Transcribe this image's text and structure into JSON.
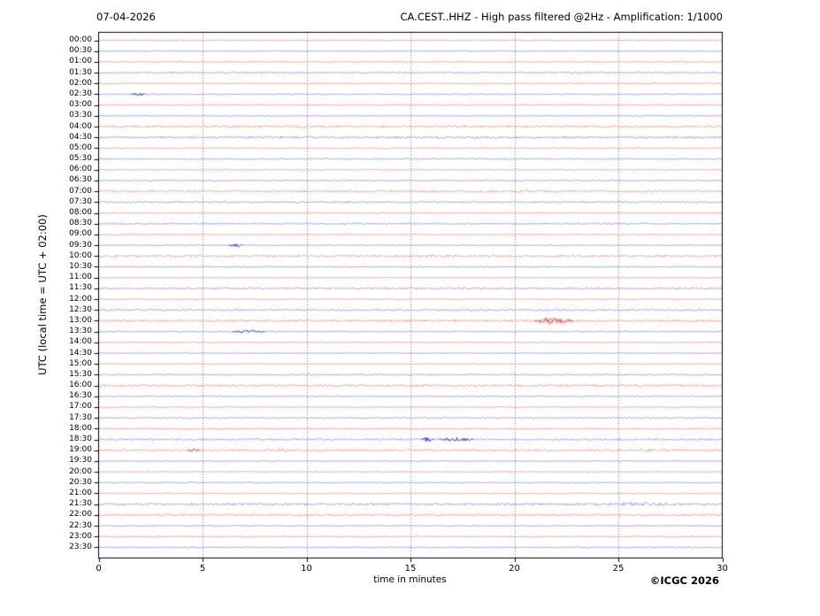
{
  "header": {
    "date": "07-04-2026",
    "title": "CA.CEST..HHZ - High pass filtered @2Hz - Amplification: 1/1000"
  },
  "footer": {
    "copyright": "©ICGC 2026"
  },
  "chart_data": {
    "type": "line",
    "chart_kind": "helicorder-day-plot",
    "station": "CA.CEST..HHZ",
    "filter": "High pass filtered @2Hz",
    "amplification": "1/1000",
    "date_label": "07-04-2026",
    "title": "CA.CEST..HHZ - High pass filtered @2Hz - Amplification: 1/1000",
    "xlabel": "time in minutes",
    "ylabel": "UTC (local time = UTC + 02:00)",
    "xlim": [
      0,
      30
    ],
    "x_ticks": [
      0,
      5,
      10,
      15,
      20,
      25,
      30
    ],
    "grid_x": [
      5,
      10,
      15,
      20,
      25
    ],
    "grid_on": true,
    "row_interval_minutes": 30,
    "trace_colors": {
      "red": "#ee6b6b",
      "blue": "#6b6bdf",
      "event_red": "#e02020",
      "event_blue": "#2828cc",
      "grid": "#555555",
      "frame": "#000000"
    },
    "rows": [
      {
        "label": "00:00",
        "color": "red",
        "noise": 0.5,
        "events": []
      },
      {
        "label": "00:30",
        "color": "blue",
        "noise": 0.55,
        "events": []
      },
      {
        "label": "01:00",
        "color": "red",
        "noise": 0.6,
        "events": []
      },
      {
        "label": "01:30",
        "color": "blue",
        "noise": 0.9,
        "events": []
      },
      {
        "label": "02:00",
        "color": "red",
        "noise": 0.8,
        "events": []
      },
      {
        "label": "02:30",
        "color": "blue",
        "noise": 0.6,
        "events": [
          {
            "t": 1.9,
            "dur": 0.2,
            "amp": 1.6,
            "dark": true
          }
        ]
      },
      {
        "label": "03:00",
        "color": "red",
        "noise": 0.7,
        "events": []
      },
      {
        "label": "03:30",
        "color": "blue",
        "noise": 0.5,
        "events": []
      },
      {
        "label": "04:00",
        "color": "red",
        "noise": 1.2,
        "events": []
      },
      {
        "label": "04:30",
        "color": "blue",
        "noise": 1.2,
        "events": []
      },
      {
        "label": "05:00",
        "color": "red",
        "noise": 0.6,
        "events": []
      },
      {
        "label": "05:30",
        "color": "blue",
        "noise": 0.8,
        "events": []
      },
      {
        "label": "06:00",
        "color": "red",
        "noise": 0.5,
        "events": []
      },
      {
        "label": "06:30",
        "color": "blue",
        "noise": 0.7,
        "events": []
      },
      {
        "label": "07:00",
        "color": "red",
        "noise": 1.2,
        "events": []
      },
      {
        "label": "07:30",
        "color": "blue",
        "noise": 0.9,
        "events": []
      },
      {
        "label": "08:00",
        "color": "red",
        "noise": 0.6,
        "events": []
      },
      {
        "label": "08:30",
        "color": "blue",
        "noise": 0.9,
        "events": []
      },
      {
        "label": "09:00",
        "color": "red",
        "noise": 0.6,
        "events": []
      },
      {
        "label": "09:30",
        "color": "blue",
        "noise": 0.6,
        "events": [
          {
            "t": 6.6,
            "dur": 0.2,
            "amp": 1.6,
            "dark": true
          }
        ]
      },
      {
        "label": "10:00",
        "color": "red",
        "noise": 1.3,
        "events": []
      },
      {
        "label": "10:30",
        "color": "blue",
        "noise": 0.6,
        "events": []
      },
      {
        "label": "11:00",
        "color": "red",
        "noise": 0.6,
        "events": []
      },
      {
        "label": "11:30",
        "color": "blue",
        "noise": 1.0,
        "events": []
      },
      {
        "label": "12:00",
        "color": "red",
        "noise": 0.5,
        "events": []
      },
      {
        "label": "12:30",
        "color": "blue",
        "noise": 1.0,
        "events": [
          {
            "t": 18.8,
            "dur": 0.6,
            "amp": 0.9,
            "dark": false
          }
        ]
      },
      {
        "label": "13:00",
        "color": "red",
        "noise": 1.3,
        "events": [
          {
            "t": 21.9,
            "dur": 0.45,
            "amp": 3.2,
            "dark": true
          }
        ]
      },
      {
        "label": "13:30",
        "color": "blue",
        "noise": 0.7,
        "events": [
          {
            "t": 7.2,
            "dur": 0.5,
            "amp": 1.3,
            "dark": true
          }
        ]
      },
      {
        "label": "14:00",
        "color": "red",
        "noise": 0.6,
        "events": []
      },
      {
        "label": "14:30",
        "color": "blue",
        "noise": 0.5,
        "events": []
      },
      {
        "label": "15:00",
        "color": "red",
        "noise": 0.5,
        "events": []
      },
      {
        "label": "15:30",
        "color": "blue",
        "noise": 0.8,
        "events": [
          {
            "t": 10.2,
            "dur": 0.5,
            "amp": 0.8,
            "dark": false
          }
        ]
      },
      {
        "label": "16:00",
        "color": "red",
        "noise": 1.2,
        "events": []
      },
      {
        "label": "16:30",
        "color": "blue",
        "noise": 0.6,
        "events": []
      },
      {
        "label": "17:00",
        "color": "red",
        "noise": 0.6,
        "events": []
      },
      {
        "label": "17:30",
        "color": "blue",
        "noise": 0.7,
        "events": []
      },
      {
        "label": "18:00",
        "color": "red",
        "noise": 0.5,
        "events": []
      },
      {
        "label": "18:30",
        "color": "blue",
        "noise": 1.0,
        "events": [
          {
            "t": 15.8,
            "dur": 0.15,
            "amp": 2.2,
            "dark": true
          },
          {
            "t": 17.2,
            "dur": 0.5,
            "amp": 1.5,
            "dark": true
          }
        ]
      },
      {
        "label": "19:00",
        "color": "red",
        "noise": 1.1,
        "events": [
          {
            "t": 4.55,
            "dur": 0.15,
            "amp": 1.7,
            "dark": true
          },
          {
            "t": 8.8,
            "dur": 0.3,
            "amp": 1.2,
            "dark": false
          },
          {
            "t": 26.5,
            "dur": 0.8,
            "amp": 0.9,
            "dark": false
          }
        ]
      },
      {
        "label": "19:30",
        "color": "blue",
        "noise": 0.5,
        "events": []
      },
      {
        "label": "20:00",
        "color": "red",
        "noise": 0.6,
        "events": []
      },
      {
        "label": "20:30",
        "color": "blue",
        "noise": 0.7,
        "events": []
      },
      {
        "label": "21:00",
        "color": "red",
        "noise": 0.5,
        "events": []
      },
      {
        "label": "21:30",
        "color": "blue",
        "noise": 1.3,
        "events": [
          {
            "t": 26.0,
            "dur": 1.5,
            "amp": 1.2,
            "dark": false
          }
        ]
      },
      {
        "label": "22:00",
        "color": "red",
        "noise": 1.1,
        "events": []
      },
      {
        "label": "22:30",
        "color": "blue",
        "noise": 0.5,
        "events": []
      },
      {
        "label": "23:00",
        "color": "red",
        "noise": 0.6,
        "events": []
      },
      {
        "label": "23:30",
        "color": "blue",
        "noise": 0.6,
        "events": []
      }
    ]
  }
}
